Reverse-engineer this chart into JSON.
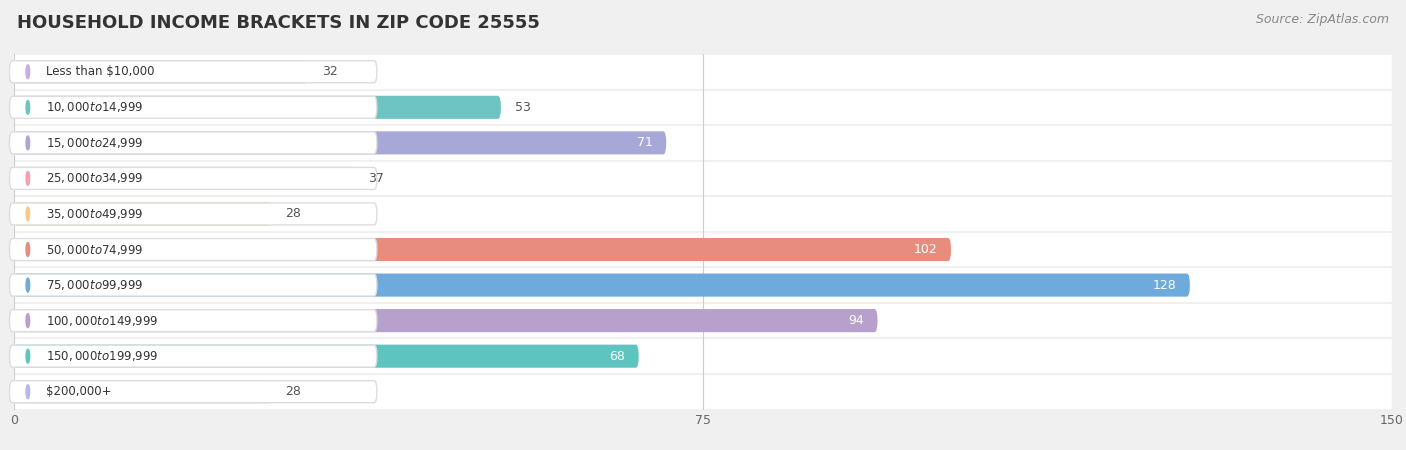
{
  "title": "HOUSEHOLD INCOME BRACKETS IN ZIP CODE 25555",
  "source": "Source: ZipAtlas.com",
  "categories": [
    "Less than $10,000",
    "$10,000 to $14,999",
    "$15,000 to $24,999",
    "$25,000 to $34,999",
    "$35,000 to $49,999",
    "$50,000 to $74,999",
    "$75,000 to $99,999",
    "$100,000 to $149,999",
    "$150,000 to $199,999",
    "$200,000+"
  ],
  "values": [
    32,
    53,
    71,
    37,
    28,
    102,
    128,
    94,
    68,
    28
  ],
  "bar_colors": [
    "#c9afd4",
    "#6ec4c1",
    "#a8a8d8",
    "#f4a0b0",
    "#f9c98a",
    "#e88c7d",
    "#6eaadb",
    "#b8a0cc",
    "#5ec4c0",
    "#b8b8e8"
  ],
  "xlim": [
    0,
    150
  ],
  "xticks": [
    0,
    75,
    150
  ],
  "background_color": "#f0f0f0",
  "bar_row_color": "#ffffff",
  "label_color_dark": "#555555",
  "label_color_light": "#ffffff",
  "title_fontsize": 13,
  "source_fontsize": 9,
  "label_fontsize": 9,
  "bar_height": 0.65,
  "value_threshold": 60
}
